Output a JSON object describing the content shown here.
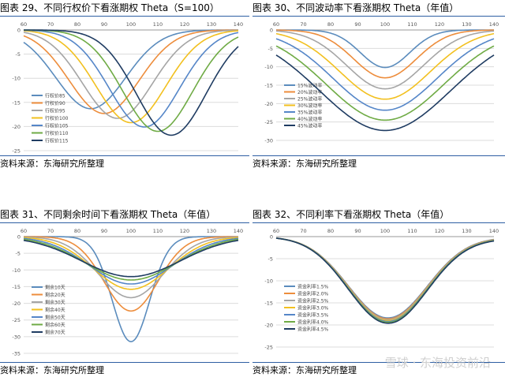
{
  "source_label": "资料来源：东海研究所整理",
  "watermark": "雪球 · 东海投资前沿",
  "chart_data": [
    {
      "type": "line",
      "title": "图表 29、不同行权价下看涨期权 Theta（S=100）",
      "xlim": [
        60,
        140
      ],
      "ylim": [
        -25,
        0
      ],
      "xticks": [
        60,
        70,
        80,
        90,
        100,
        110,
        120,
        130,
        140
      ],
      "yticks": [
        0,
        -5,
        -10,
        -15,
        -20,
        -25
      ],
      "legend": "lower-left",
      "series": [
        {
          "name": "行权价85",
          "color": "#5b8cbd",
          "min_x": 85,
          "min_y": -16.3,
          "w": 13
        },
        {
          "name": "行权价90",
          "color": "#ed8d3c",
          "min_x": 90,
          "min_y": -17.3,
          "w": 13
        },
        {
          "name": "行权价95",
          "color": "#a5a5a5",
          "min_x": 95,
          "min_y": -18.3,
          "w": 13
        },
        {
          "name": "行权价100",
          "color": "#f2c01f",
          "min_x": 100,
          "min_y": -19.2,
          "w": 13
        },
        {
          "name": "行权价105",
          "color": "#5586c8",
          "min_x": 105,
          "min_y": -20.1,
          "w": 13
        },
        {
          "name": "行权价110",
          "color": "#6fab45",
          "min_x": 110,
          "min_y": -21.0,
          "w": 13
        },
        {
          "name": "行权价115",
          "color": "#1f3c62",
          "min_x": 115,
          "min_y": -21.8,
          "w": 13
        }
      ]
    },
    {
      "type": "line",
      "title": "图表 30、不同波动率下看涨期权 Theta（年值）",
      "xlim": [
        60,
        140
      ],
      "ylim": [
        -30,
        0
      ],
      "xticks": [
        60,
        70,
        80,
        90,
        100,
        110,
        120,
        130,
        140
      ],
      "yticks": [
        0,
        -5,
        -10,
        -15,
        -20,
        -25,
        -30
      ],
      "legend": "center-left",
      "series": [
        {
          "name": "15%波动率",
          "color": "#5b8cbd",
          "min_x": 100,
          "min_y": -10.2,
          "w": 9
        },
        {
          "name": "20%波动率",
          "color": "#ed8d3c",
          "min_x": 100,
          "min_y": -13.0,
          "w": 11.5
        },
        {
          "name": "25%波动率",
          "color": "#a5a5a5",
          "min_x": 100,
          "min_y": -16.0,
          "w": 14
        },
        {
          "name": "30%波动率",
          "color": "#f2c01f",
          "min_x": 100,
          "min_y": -18.8,
          "w": 16.5
        },
        {
          "name": "35%波动率",
          "color": "#5586c8",
          "min_x": 100,
          "min_y": -21.8,
          "w": 19
        },
        {
          "name": "40%波动率",
          "color": "#6fab45",
          "min_x": 100,
          "min_y": -24.5,
          "w": 21.5
        },
        {
          "name": "45%波动率",
          "color": "#1f3c62",
          "min_x": 100,
          "min_y": -27.3,
          "w": 24
        }
      ]
    },
    {
      "type": "line",
      "title": "图表 31、不同剩余时间下看涨期权 Theta（年值）",
      "xlim": [
        60,
        140
      ],
      "ylim": [
        -35,
        0
      ],
      "xticks": [
        60,
        70,
        80,
        90,
        100,
        110,
        120,
        130,
        140
      ],
      "yticks": [
        0,
        -5,
        -10,
        -15,
        -20,
        -25,
        -30,
        -35
      ],
      "legend": "lower-left",
      "series": [
        {
          "name": "剩余10天",
          "color": "#5b8cbd",
          "min_x": 100,
          "min_y": -31.5,
          "w": 7
        },
        {
          "name": "剩余20天",
          "color": "#ed8d3c",
          "min_x": 100,
          "min_y": -22.3,
          "w": 10
        },
        {
          "name": "剩余30天",
          "color": "#a5a5a5",
          "min_x": 100,
          "min_y": -18.3,
          "w": 12.2
        },
        {
          "name": "剩余40天",
          "color": "#f2c01f",
          "min_x": 100,
          "min_y": -15.8,
          "w": 14
        },
        {
          "name": "剩余50天",
          "color": "#5586c8",
          "min_x": 100,
          "min_y": -14.2,
          "w": 15.6
        },
        {
          "name": "剩余60天",
          "color": "#6fab45",
          "min_x": 100,
          "min_y": -13.0,
          "w": 17
        },
        {
          "name": "剩余70天",
          "color": "#1f3c62",
          "min_x": 100,
          "min_y": -12.0,
          "w": 18.4
        }
      ]
    },
    {
      "type": "line",
      "title": "图表 32、不同利率下看涨期权 Theta（年值）",
      "xlim": [
        60,
        140
      ],
      "ylim": [
        -25,
        0
      ],
      "xticks": [
        60,
        70,
        80,
        90,
        100,
        110,
        120,
        130,
        140
      ],
      "yticks": [
        0,
        -5,
        -10,
        -15,
        -20,
        -25
      ],
      "legend": "lower-left",
      "series": [
        {
          "name": "资金利率1.5%",
          "color": "#5b8cbd",
          "min_x": 101,
          "min_y": -18.4,
          "w": 14.5,
          "tail": 0.16
        },
        {
          "name": "资金利率2.0%",
          "color": "#ed8d3c",
          "min_x": 101,
          "min_y": -18.6,
          "w": 14.5,
          "tail": 0.22
        },
        {
          "name": "资金利率2.5%",
          "color": "#a5a5a5",
          "min_x": 101,
          "min_y": -18.8,
          "w": 14.5,
          "tail": 0.28
        },
        {
          "name": "资金利率3.0%",
          "color": "#f2c01f",
          "min_x": 101,
          "min_y": -19.0,
          "w": 14.5,
          "tail": 0.34
        },
        {
          "name": "资金利率3.5%",
          "color": "#5586c8",
          "min_x": 101,
          "min_y": -19.2,
          "w": 14.5,
          "tail": 0.4
        },
        {
          "name": "资金利率4.0%",
          "color": "#6fab45",
          "min_x": 101,
          "min_y": -19.4,
          "w": 14.5,
          "tail": 0.46
        },
        {
          "name": "资金利率4.5%",
          "color": "#1f3c62",
          "min_x": 101,
          "min_y": -19.6,
          "w": 14.5,
          "tail": 0.52
        }
      ]
    }
  ]
}
